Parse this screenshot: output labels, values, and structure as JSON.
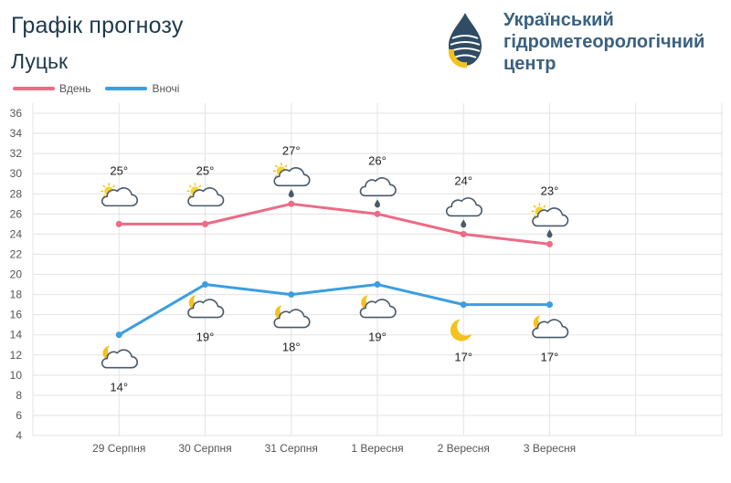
{
  "header": {
    "title": "Графік прогнозу",
    "city": "Луцьк"
  },
  "brand": {
    "line1": "Український",
    "line2": "гідрометеорологічний",
    "line3": "центр"
  },
  "colors": {
    "day": "#ec6b86",
    "night": "#3c9ee0",
    "grid": "#e3e3e3",
    "text": "#555555"
  },
  "chart_data": {
    "type": "line",
    "categories": [
      "29 Серпня",
      "30 Серпня",
      "31 Серпня",
      "1 Вересня",
      "2 Вересня",
      "3 Вересня"
    ],
    "series": [
      {
        "name": "Вдень",
        "values": [
          25,
          25,
          27,
          26,
          24,
          23
        ],
        "labels": [
          "25°",
          "25°",
          "27°",
          "26°",
          "24°",
          "23°"
        ],
        "icons": [
          "sun-cloud-icon",
          "sun-cloud-icon",
          "sun-cloud-rain-icon",
          "cloud-rain-icon",
          "cloud-rain-icon",
          "sun-cloud-rain-icon"
        ],
        "label_position": "above"
      },
      {
        "name": "Вночі",
        "values": [
          14,
          19,
          18,
          19,
          17,
          17
        ],
        "labels": [
          "14°",
          "19°",
          "18°",
          "19°",
          "17°",
          "17°"
        ],
        "icons": [
          "moon-cloud-icon",
          "moon-cloud-icon",
          "moon-cloud-icon",
          "moon-cloud-icon",
          "moon-icon",
          "moon-cloud-icon"
        ],
        "label_position": "below"
      }
    ],
    "y_ticks": [
      4,
      6,
      8,
      10,
      12,
      14,
      16,
      18,
      20,
      22,
      24,
      26,
      28,
      30,
      32,
      34,
      36
    ],
    "ylim": [
      4,
      37
    ],
    "grid": true,
    "legend": "top-left"
  }
}
